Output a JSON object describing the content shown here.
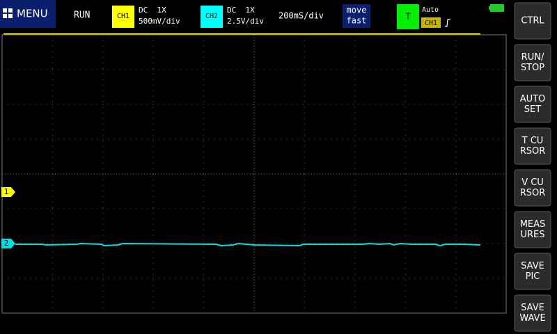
{
  "header": {
    "menu": "MENU",
    "status": "RUN",
    "ch1": {
      "label": "CH1",
      "coupling": "DC  1X",
      "scale": "500mV/div"
    },
    "ch2": {
      "label": "CH2",
      "coupling": "DC  1X",
      "scale": "2.5V/div"
    },
    "timebase": "200mS/div",
    "move": [
      "move",
      "fast"
    ],
    "trigger": {
      "label": "T",
      "mode": "Auto",
      "source": "CH1"
    }
  },
  "buttons": [
    [
      "CTRL"
    ],
    [
      "RUN/",
      "STOP"
    ],
    [
      "AUTO",
      "SET"
    ],
    [
      "T CU",
      "RSOR"
    ],
    [
      "V CU",
      "RSOR"
    ],
    [
      "MEAS",
      "URES"
    ],
    [
      "SAVE",
      "PIC"
    ],
    [
      "SAVE",
      "WAVE"
    ]
  ],
  "markers": [
    "1",
    "2"
  ]
}
